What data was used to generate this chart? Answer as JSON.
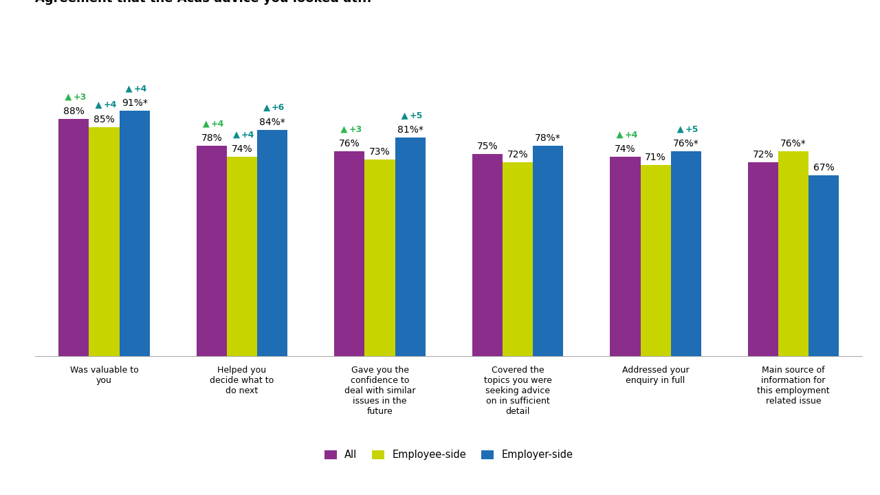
{
  "categories": [
    "Was valuable to\nyou",
    "Helped you\ndecide what to\ndo next",
    "Gave you the\nconfidence to\ndeal with similar\nissues in the\nfuture",
    "Covered the\ntopics you were\nseeking advice\non in sufficient\ndetail",
    "Addressed your\nenquiry in full",
    "Main source of\ninformation for\nthis employment\nrelated issue"
  ],
  "all_values": [
    88,
    78,
    76,
    75,
    74,
    72
  ],
  "employee_values": [
    85,
    74,
    73,
    72,
    71,
    76
  ],
  "employer_values": [
    91,
    84,
    81,
    78,
    76,
    67
  ],
  "all_labels": [
    "88%",
    "78%",
    "76%",
    "75%",
    "74%",
    "72%"
  ],
  "employee_labels": [
    "85%",
    "74%",
    "73%",
    "72%",
    "71%",
    "76%*"
  ],
  "employer_labels": [
    "91%*",
    "84%*",
    "81%*",
    "78%*",
    "76%*",
    "67%"
  ],
  "arrows_all": [
    "+3",
    "+4",
    "+3",
    null,
    "+4",
    null
  ],
  "arrows_employee": [
    "+4",
    "+4",
    null,
    null,
    null,
    null
  ],
  "arrows_employer": [
    "+4",
    "+6",
    "+5",
    null,
    "+5",
    null
  ],
  "bar_color_all": "#8B2D8B",
  "bar_color_employee": "#C8D400",
  "bar_color_employer": "#1E6DB5",
  "arrow_color_green": "#2DB551",
  "arrow_color_teal": "#0E8B8B",
  "legend_labels": [
    "All",
    "Employee-side",
    "Employer-side"
  ],
  "background_color": "#FFFFFF",
  "ylim_max": 110,
  "bar_width": 0.22,
  "title_fontsize": 13,
  "label_fontsize": 10,
  "tick_fontsize": 9,
  "arrow_fontsize": 9
}
